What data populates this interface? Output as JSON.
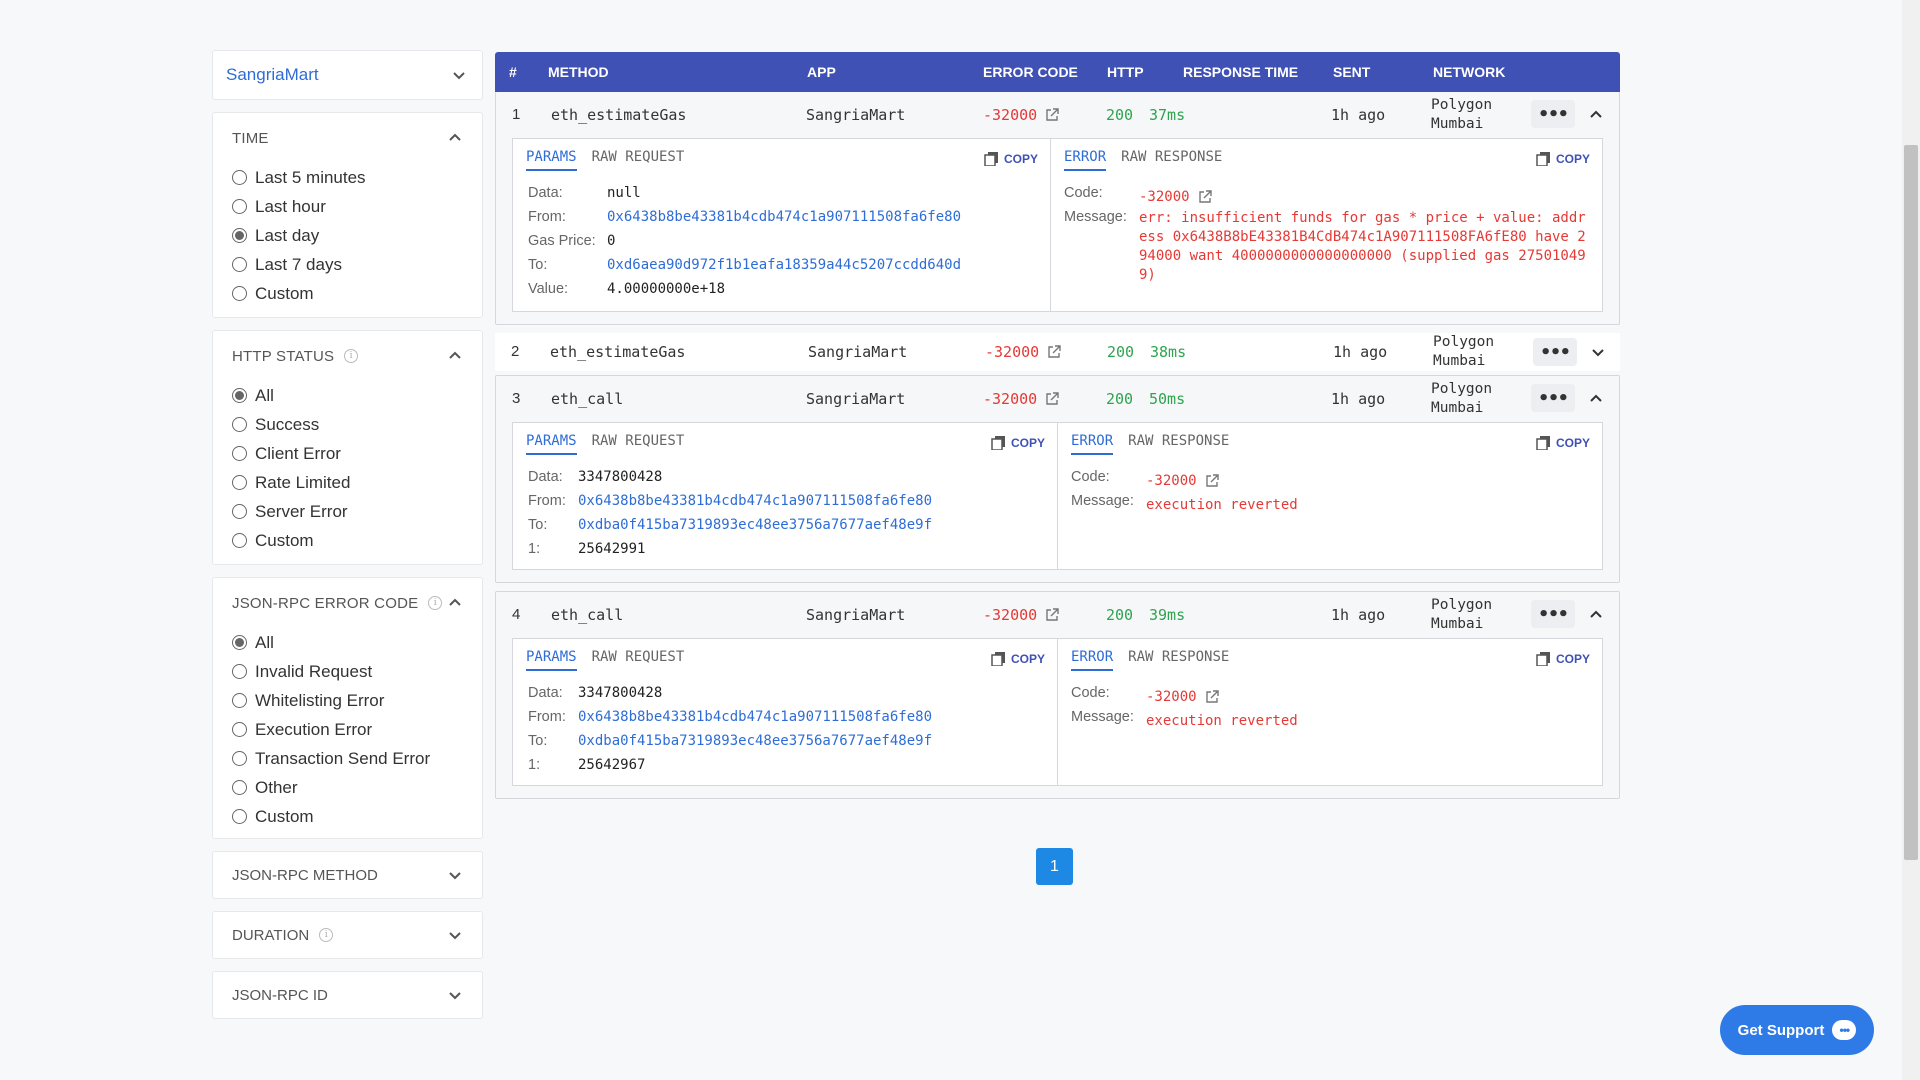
{
  "sidebar": {
    "app_select": "SangriaMart",
    "time": {
      "title": "TIME",
      "options": [
        "Last 5 minutes",
        "Last hour",
        "Last day",
        "Last 7 days",
        "Custom"
      ],
      "selected": "Last day"
    },
    "http_status": {
      "title": "HTTP STATUS",
      "options": [
        "All",
        "Success",
        "Client Error",
        "Rate Limited",
        "Server Error",
        "Custom"
      ],
      "selected": "All"
    },
    "error_code": {
      "title": "JSON-RPC ERROR CODE",
      "options": [
        "All",
        "Invalid Request",
        "Whitelisting Error",
        "Execution Error",
        "Transaction Send Error",
        "Other",
        "Custom"
      ],
      "selected": "All"
    },
    "collapsed": [
      "JSON-RPC METHOD",
      "DURATION",
      "JSON-RPC ID"
    ]
  },
  "table": {
    "headers": {
      "num": "#",
      "method": "METHOD",
      "app": "APP",
      "error_code": "ERROR CODE",
      "http": "HTTP",
      "response_time": "RESPONSE TIME",
      "sent": "SENT",
      "network": "NETWORK"
    },
    "rows": [
      {
        "num": "1",
        "method": "eth_estimateGas",
        "app": "SangriaMart",
        "error_code": "-32000",
        "http": "200",
        "response_time": "37ms",
        "sent": "1h ago",
        "network_1": "Polygon",
        "network_2": "Mumbai",
        "more": "•••",
        "params_tab": "PARAMS",
        "raw_request_tab": "RAW REQUEST",
        "error_tab": "ERROR",
        "raw_response_tab": "RAW RESPONSE",
        "copy": "COPY",
        "params": [
          {
            "k": "Data:",
            "v": "null"
          },
          {
            "k": "From:",
            "v": "0x6438b8be43381b4cdb474c1a907111508fa6fe80"
          },
          {
            "k": "Gas Price:",
            "v": "0"
          },
          {
            "k": "To:",
            "v": "0xd6aea90d972f1b1eafa18359a44c5207ccdd640d"
          },
          {
            "k": "Value:",
            "v": "4.00000000e+18"
          }
        ],
        "error_code_label": "Code:",
        "error_code_value": "-32000",
        "message_label": "Message:",
        "message": "err: insufficient funds for gas * price + value: address 0x6438B8bE43381B4CdB474c1A907111508FA6fE80 have 294000 want 4000000000000000000 (supplied gas 275010499)"
      },
      {
        "num": "2",
        "method": "eth_estimateGas",
        "app": "SangriaMart",
        "error_code": "-32000",
        "http": "200",
        "response_time": "38ms",
        "sent": "1h ago",
        "network_1": "Polygon",
        "network_2": "Mumbai",
        "more": "•••"
      },
      {
        "num": "3",
        "method": "eth_call",
        "app": "SangriaMart",
        "error_code": "-32000",
        "http": "200",
        "response_time": "50ms",
        "sent": "1h ago",
        "network_1": "Polygon",
        "network_2": "Mumbai",
        "more": "•••",
        "params_tab": "PARAMS",
        "raw_request_tab": "RAW REQUEST",
        "error_tab": "ERROR",
        "raw_response_tab": "RAW RESPONSE",
        "copy": "COPY",
        "params": [
          {
            "k": "Data:",
            "v": "3347800428"
          },
          {
            "k": "From:",
            "v": "0x6438b8be43381b4cdb474c1a907111508fa6fe80"
          },
          {
            "k": "To:",
            "v": "0xdba0f415ba7319893ec48ee3756a7677aef48e9f"
          },
          {
            "k": "1:",
            "v": "25642991"
          }
        ],
        "error_code_label": "Code:",
        "error_code_value": "-32000",
        "message_label": "Message:",
        "message": "execution reverted"
      },
      {
        "num": "4",
        "method": "eth_call",
        "app": "SangriaMart",
        "error_code": "-32000",
        "http": "200",
        "response_time": "39ms",
        "sent": "1h ago",
        "network_1": "Polygon",
        "network_2": "Mumbai",
        "more": "•••",
        "params_tab": "PARAMS",
        "raw_request_tab": "RAW REQUEST",
        "error_tab": "ERROR",
        "raw_response_tab": "RAW RESPONSE",
        "copy": "COPY",
        "params": [
          {
            "k": "Data:",
            "v": "3347800428"
          },
          {
            "k": "From:",
            "v": "0x6438b8be43381b4cdb474c1a907111508fa6fe80"
          },
          {
            "k": "To:",
            "v": "0xdba0f415ba7319893ec48ee3756a7677aef48e9f"
          },
          {
            "k": "1:",
            "v": "25642967"
          }
        ],
        "error_code_label": "Code:",
        "error_code_value": "-32000",
        "message_label": "Message:",
        "message": "execution reverted"
      }
    ]
  },
  "pagination": {
    "current": "1"
  },
  "support": {
    "label": "Get Support"
  },
  "colors": {
    "header": "#3f51b5",
    "accent": "#2e6dd6",
    "error": "#e53935",
    "success": "#2ea44f"
  }
}
